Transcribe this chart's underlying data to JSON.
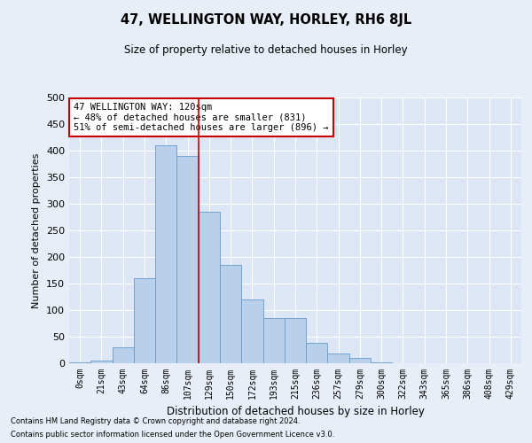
{
  "title": "47, WELLINGTON WAY, HORLEY, RH6 8JL",
  "subtitle": "Size of property relative to detached houses in Horley",
  "xlabel": "Distribution of detached houses by size in Horley",
  "ylabel": "Number of detached properties",
  "bin_labels": [
    "0sqm",
    "21sqm",
    "43sqm",
    "64sqm",
    "86sqm",
    "107sqm",
    "129sqm",
    "150sqm",
    "172sqm",
    "193sqm",
    "215sqm",
    "236sqm",
    "257sqm",
    "279sqm",
    "300sqm",
    "322sqm",
    "343sqm",
    "365sqm",
    "386sqm",
    "408sqm",
    "429sqm"
  ],
  "bar_heights": [
    2,
    5,
    30,
    160,
    410,
    390,
    285,
    185,
    120,
    85,
    85,
    38,
    18,
    10,
    1,
    0,
    0,
    0,
    0,
    0,
    0
  ],
  "bar_color": "#b8d0ea",
  "bar_edge_color": "#6699cc",
  "vline_pos": 5.5,
  "vline_color": "#cc0000",
  "annotation_text": "47 WELLINGTON WAY: 120sqm\n← 48% of detached houses are smaller (831)\n51% of semi-detached houses are larger (896) →",
  "annotation_box_color": "#ffffff",
  "annotation_box_edge": "#cc0000",
  "ylim": [
    0,
    500
  ],
  "yticks": [
    0,
    50,
    100,
    150,
    200,
    250,
    300,
    350,
    400,
    450,
    500
  ],
  "bg_color": "#e8eef7",
  "plot_bg_color": "#dce6f5",
  "grid_color": "#ffffff",
  "footer_line1": "Contains HM Land Registry data © Crown copyright and database right 2024.",
  "footer_line2": "Contains public sector information licensed under the Open Government Licence v3.0."
}
